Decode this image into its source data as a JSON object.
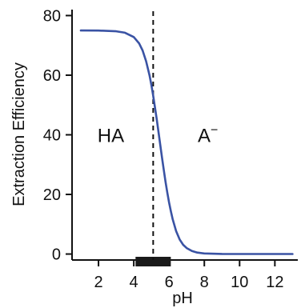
{
  "chart_data": {
    "type": "line",
    "title": "",
    "xlabel": "pH",
    "ylabel": "Extraction Efficiency",
    "xlim": [
      0.5,
      13.3
    ],
    "ylim": [
      -2,
      82
    ],
    "x_ticks": [
      2,
      4,
      6,
      8,
      10,
      12
    ],
    "y_ticks": [
      0,
      20,
      40,
      60,
      80
    ],
    "grid": false,
    "legend": "none",
    "series": [
      {
        "color": "#3a53a4",
        "x": [
          1.0,
          2.0,
          3.0,
          3.5,
          4.0,
          4.3,
          4.5,
          4.7,
          4.9,
          5.0,
          5.1,
          5.2,
          5.3,
          5.4,
          5.5,
          5.6,
          5.7,
          5.8,
          5.9,
          6.0,
          6.1,
          6.2,
          6.4,
          6.6,
          6.8,
          7.0,
          7.3,
          7.6,
          8.0,
          9.0,
          10.0,
          11.0,
          12.0,
          13.0
        ],
        "y": [
          75.0,
          74.97,
          74.74,
          74.24,
          72.8,
          70.7,
          68.3,
          64.7,
          59.8,
          56.7,
          53.2,
          49.3,
          45.2,
          40.9,
          36.6,
          32.3,
          28.2,
          24.2,
          20.6,
          17.3,
          14.4,
          11.8,
          7.7,
          4.9,
          3.1,
          2.0,
          1.0,
          0.5,
          0.2,
          0.03,
          0.0,
          0.0,
          0.0,
          0.0
        ]
      }
    ],
    "reference_lines": [
      {
        "axis": "x",
        "value": 5.1,
        "style": "dashed",
        "color": "#111111"
      }
    ],
    "x_range_bar": {
      "from": 4.1,
      "to": 6.1,
      "color": "#1a1a1a"
    },
    "annotations": [
      {
        "text": "HA",
        "x": 2.7,
        "y": 40
      },
      {
        "text": "A",
        "superscript": "−",
        "x": 8.2,
        "y": 40
      }
    ]
  }
}
